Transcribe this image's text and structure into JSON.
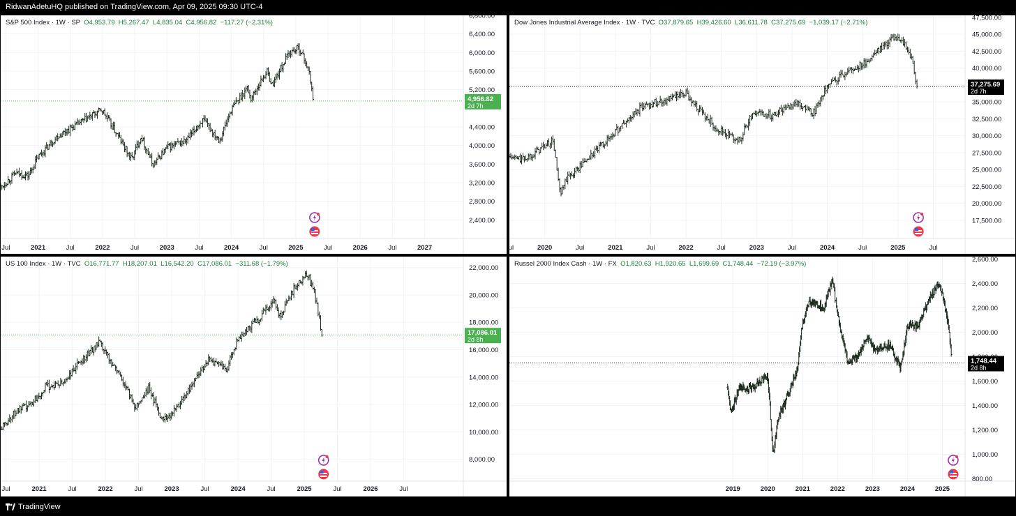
{
  "header": {
    "published": "RidwanAdetuHQ published on TradingView.com, Apr 09, 2025 09:30 UTC-4"
  },
  "footer": {
    "brand": "TradingView"
  },
  "colors": {
    "grid": "#f0f3fa",
    "bar": "#1c2a1c",
    "green_label": "#4caf50",
    "black_label": "#000000"
  },
  "chart_data": [
    {
      "type": "ohlc",
      "id": "spx",
      "legend": {
        "name": "S&P 500 Index · 1W · SP",
        "o": "O4,953.79",
        "h": "H5,267.47",
        "l": "L4,835.04",
        "c": "C4,956.82",
        "chg": "−117.27 (−2.31%)"
      },
      "ylim": [
        2000,
        6800
      ],
      "yticks": [
        "6,800.00",
        "6,400.00",
        "6,000.00",
        "5,600.00",
        "5,200.00",
        "4,400.00",
        "4,000.00",
        "3,600.00",
        "3,200.00",
        "2,800.00",
        "2,400.00"
      ],
      "ytick_values": [
        6800,
        6400,
        6000,
        5600,
        5200,
        4400,
        4000,
        3600,
        3200,
        2800,
        2400
      ],
      "xrange": [
        2020.42,
        2027.6
      ],
      "xticks": [
        {
          "t": 2020.5,
          "label": "Jul"
        },
        {
          "t": 2021.0,
          "label": "2021"
        },
        {
          "t": 2021.5,
          "label": "Jul"
        },
        {
          "t": 2022.0,
          "label": "2022"
        },
        {
          "t": 2022.5,
          "label": "Jul"
        },
        {
          "t": 2023.0,
          "label": "2023"
        },
        {
          "t": 2023.5,
          "label": "Jul"
        },
        {
          "t": 2024.0,
          "label": "2024"
        },
        {
          "t": 2024.5,
          "label": "Jul"
        },
        {
          "t": 2025.0,
          "label": "2025"
        },
        {
          "t": 2025.5,
          "label": "Jul"
        },
        {
          "t": 2026.0,
          "label": "2026"
        },
        {
          "t": 2026.5,
          "label": "Jul"
        },
        {
          "t": 2027.0,
          "label": "2027"
        }
      ],
      "path": [
        [
          2020.42,
          3100
        ],
        [
          2020.65,
          3400
        ],
        [
          2020.85,
          3350
        ],
        [
          2021.0,
          3750
        ],
        [
          2021.3,
          4200
        ],
        [
          2021.6,
          4450
        ],
        [
          2021.99,
          4770
        ],
        [
          2022.2,
          4300
        ],
        [
          2022.45,
          3700
        ],
        [
          2022.6,
          4200
        ],
        [
          2022.78,
          3580
        ],
        [
          2023.0,
          3950
        ],
        [
          2023.3,
          4100
        ],
        [
          2023.55,
          4550
        ],
        [
          2023.82,
          4120
        ],
        [
          2024.0,
          4780
        ],
        [
          2024.25,
          5250
        ],
        [
          2024.3,
          5000
        ],
        [
          2024.55,
          5600
        ],
        [
          2024.63,
          5300
        ],
        [
          2024.9,
          6000
        ],
        [
          2025.05,
          6100
        ],
        [
          2025.15,
          5800
        ],
        [
          2025.2,
          5600
        ],
        [
          2025.25,
          5200
        ],
        [
          2025.27,
          4900
        ]
      ],
      "last": {
        "price": "4,956.82",
        "value": 4956.82,
        "timer": "2d 7h",
        "style": "green"
      }
    },
    {
      "type": "ohlc",
      "id": "dji",
      "legend": {
        "name": "Dow Jones Industrial Average Index · 1W · TVC",
        "o": "O37,879.65",
        "h": "H39,426.60",
        "l": "L36,611.78",
        "c": "C37,275.69",
        "chg": "−1,039.17 (−2.71%)"
      },
      "ylim": [
        14800,
        47800
      ],
      "yticks": [
        "47,500.00",
        "45,000.00",
        "42,500.00",
        "40,000.00",
        "37,500.00",
        "35,000.00",
        "32,500.00",
        "30,000.00",
        "27,500.00",
        "25,000.00",
        "22,500.00",
        "20,000.00",
        "17,500.00"
      ],
      "ytick_values": [
        47500,
        45000,
        42500,
        40000,
        37500,
        35000,
        32500,
        30000,
        27500,
        25000,
        22500,
        20000,
        17500
      ],
      "xrange": [
        2019.5,
        2025.95
      ],
      "xticks": [
        {
          "t": 2019.5,
          "label": "Jul"
        },
        {
          "t": 2020.0,
          "label": "2020"
        },
        {
          "t": 2020.5,
          "label": "Jul"
        },
        {
          "t": 2021.0,
          "label": "2021"
        },
        {
          "t": 2021.5,
          "label": "Jul"
        },
        {
          "t": 2022.0,
          "label": "2022"
        },
        {
          "t": 2022.5,
          "label": "Jul"
        },
        {
          "t": 2023.0,
          "label": "2023"
        },
        {
          "t": 2023.5,
          "label": "Jul"
        },
        {
          "t": 2024.0,
          "label": "2024"
        },
        {
          "t": 2024.5,
          "label": "Jul"
        },
        {
          "t": 2025.0,
          "label": "2025"
        },
        {
          "t": 2025.5,
          "label": "Jul"
        }
      ],
      "path": [
        [
          2019.5,
          26800
        ],
        [
          2019.7,
          26500
        ],
        [
          2019.9,
          27800
        ],
        [
          2020.12,
          29300
        ],
        [
          2020.22,
          21000
        ],
        [
          2020.3,
          23500
        ],
        [
          2020.5,
          25500
        ],
        [
          2020.8,
          28500
        ],
        [
          2021.0,
          30600
        ],
        [
          2021.4,
          34500
        ],
        [
          2021.8,
          35500
        ],
        [
          2022.0,
          36200
        ],
        [
          2022.25,
          33000
        ],
        [
          2022.45,
          31000
        ],
        [
          2022.75,
          29200
        ],
        [
          2022.95,
          33500
        ],
        [
          2023.2,
          33000
        ],
        [
          2023.55,
          35000
        ],
        [
          2023.8,
          33200
        ],
        [
          2023.95,
          36500
        ],
        [
          2024.2,
          39000
        ],
        [
          2024.5,
          40500
        ],
        [
          2024.75,
          42800
        ],
        [
          2024.92,
          44500
        ],
        [
          2025.1,
          43500
        ],
        [
          2025.2,
          41000
        ],
        [
          2025.27,
          37300
        ]
      ],
      "last": {
        "price": "37,275.69",
        "value": 37275.69,
        "timer": "2d 7h",
        "style": "black"
      }
    },
    {
      "type": "ohlc",
      "id": "ndx",
      "legend": {
        "name": "US 100 Index · 1W · TVC",
        "o": "O16,771.77",
        "h": "H18,207.01",
        "l": "L16,542.20",
        "c": "C17,086.01",
        "chg": "−311.68 (−1.79%)"
      },
      "ylim": [
        6400,
        22800
      ],
      "yticks": [
        "22,000.00",
        "20,000.00",
        "18,000.00",
        "16,000.00",
        "14,000.00",
        "12,000.00",
        "10,000.00",
        "8,000.00"
      ],
      "ytick_values": [
        22000,
        20000,
        18000,
        16000,
        14000,
        12000,
        10000,
        8000
      ],
      "xrange": [
        2020.42,
        2027.4
      ],
      "xticks": [
        {
          "t": 2020.5,
          "label": "Jul"
        },
        {
          "t": 2021.0,
          "label": "2021"
        },
        {
          "t": 2021.5,
          "label": "Jul"
        },
        {
          "t": 2022.0,
          "label": "2022"
        },
        {
          "t": 2022.5,
          "label": "Jul"
        },
        {
          "t": 2023.0,
          "label": "2023"
        },
        {
          "t": 2023.5,
          "label": "Jul"
        },
        {
          "t": 2024.0,
          "label": "2024"
        },
        {
          "t": 2024.5,
          "label": "Jul"
        },
        {
          "t": 2025.0,
          "label": "2025"
        },
        {
          "t": 2025.5,
          "label": "Jul"
        },
        {
          "t": 2026.0,
          "label": "2026"
        },
        {
          "t": 2026.5,
          "label": "Jul"
        }
      ],
      "path": [
        [
          2020.42,
          10200
        ],
        [
          2020.65,
          11500
        ],
        [
          2020.85,
          11900
        ],
        [
          2021.1,
          13300
        ],
        [
          2021.35,
          13500
        ],
        [
          2021.65,
          15300
        ],
        [
          2021.9,
          16500
        ],
        [
          2022.2,
          14300
        ],
        [
          2022.45,
          11800
        ],
        [
          2022.65,
          13200
        ],
        [
          2022.85,
          11000
        ],
        [
          2023.0,
          11300
        ],
        [
          2023.25,
          13000
        ],
        [
          2023.55,
          15300
        ],
        [
          2023.82,
          14500
        ],
        [
          2024.0,
          16800
        ],
        [
          2024.3,
          18200
        ],
        [
          2024.55,
          19800
        ],
        [
          2024.62,
          18300
        ],
        [
          2024.88,
          20800
        ],
        [
          2025.05,
          21500
        ],
        [
          2025.15,
          20200
        ],
        [
          2025.22,
          18400
        ],
        [
          2025.27,
          17000
        ]
      ],
      "last": {
        "price": "17,086.01",
        "value": 17086.01,
        "timer": "2d 8h",
        "style": "green"
      }
    },
    {
      "type": "ohlc",
      "id": "rut",
      "legend": {
        "name": "Russel 2000 Index Cash · 1W · FX",
        "o": "O1,820.63",
        "h": "H1,920.65",
        "l": "L1,699.69",
        "c": "C1,748.44",
        "chg": "−72.19 (−3.97%)"
      },
      "ylim": [
        780,
        2620
      ],
      "yticks": [
        "2,600.00",
        "2,400.00",
        "2,200.00",
        "2,000.00",
        "1,800.00",
        "1,600.00",
        "1,400.00",
        "1,200.00",
        "1,000.00",
        "800.00"
      ],
      "ytick_values": [
        2600,
        2400,
        2200,
        2000,
        1800,
        1600,
        1400,
        1200,
        1000,
        800
      ],
      "xrange": [
        2012.6,
        2025.65
      ],
      "xticks": [
        {
          "t": 2019.0,
          "label": "2019"
        },
        {
          "t": 2020.0,
          "label": "2020"
        },
        {
          "t": 2021.0,
          "label": "2021"
        },
        {
          "t": 2022.0,
          "label": "2022"
        },
        {
          "t": 2023.0,
          "label": "2023"
        },
        {
          "t": 2024.0,
          "label": "2024"
        },
        {
          "t": 2025.0,
          "label": "2025"
        }
      ],
      "path": [
        [
          2018.85,
          1550
        ],
        [
          2018.95,
          1350
        ],
        [
          2019.2,
          1550
        ],
        [
          2019.5,
          1530
        ],
        [
          2019.8,
          1600
        ],
        [
          2020.0,
          1650
        ],
        [
          2020.15,
          1000
        ],
        [
          2020.3,
          1300
        ],
        [
          2020.6,
          1500
        ],
        [
          2020.85,
          1700
        ],
        [
          2021.0,
          2100
        ],
        [
          2021.2,
          2250
        ],
        [
          2021.6,
          2200
        ],
        [
          2021.85,
          2420
        ],
        [
          2022.05,
          2050
        ],
        [
          2022.3,
          1750
        ],
        [
          2022.55,
          1800
        ],
        [
          2022.85,
          1950
        ],
        [
          2023.1,
          1850
        ],
        [
          2023.5,
          1900
        ],
        [
          2023.8,
          1700
        ],
        [
          2024.0,
          2050
        ],
        [
          2024.3,
          2050
        ],
        [
          2024.6,
          2250
        ],
        [
          2024.88,
          2400
        ],
        [
          2025.05,
          2250
        ],
        [
          2025.18,
          2050
        ],
        [
          2025.27,
          1750
        ]
      ],
      "last": {
        "price": "1,748.44",
        "value": 1748.44,
        "timer": "2d 8h",
        "style": "black"
      }
    }
  ]
}
